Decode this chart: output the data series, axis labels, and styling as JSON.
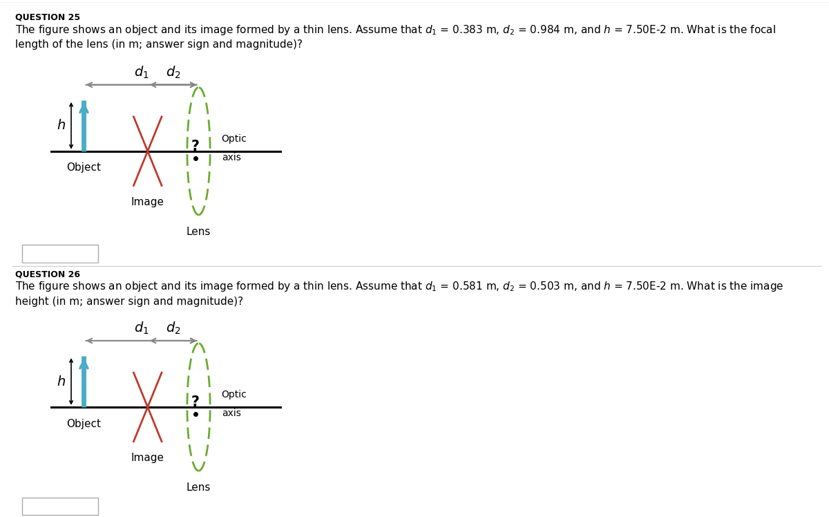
{
  "bg_color": "#ffffff",
  "fig_width": 12.0,
  "fig_height": 7.48,
  "q25": {
    "title": "QUESTION 25",
    "text_line1": "The figure shows an object and its image formed by a thin lens. Assume that $d_1$ = 0.383 m, $d_2$ = 0.984 m, and $h$ = 7.50E-2 m. What is the focal",
    "text_line2": "length of the lens (in m; answer sign and magnitude)?"
  },
  "q26": {
    "title": "QUESTION 26",
    "text_line1": "The figure shows an object and its image formed by a thin lens. Assume that $d_1$ = 0.581 m, $d_2$ = 0.503 m, and $h$ = 7.50E-2 m. What is the image",
    "text_line2": "height (in m; answer sign and magnitude)?"
  },
  "d1_label": "$d_1$",
  "d2_label": "$d_2$",
  "h_label": "$h$",
  "object_label": "Object",
  "image_label": "Image",
  "lens_label": "Lens",
  "optic_label_1": "Optic",
  "optic_label_2": "axis",
  "question_mark": "?",
  "object_color": "#4bacc6",
  "image_color": "#c0392b",
  "lens_color": "#6aab2e",
  "axis_color": "#000000",
  "arrow_gray": "#888888",
  "separator_color": "#cccccc",
  "box_color": "#aaaaaa"
}
